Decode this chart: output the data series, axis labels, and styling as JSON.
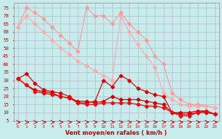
{
  "x": [
    0,
    1,
    2,
    3,
    4,
    5,
    6,
    7,
    8,
    9,
    10,
    11,
    12,
    13,
    14,
    15,
    16,
    17,
    18,
    19,
    20,
    21,
    22,
    23
  ],
  "line1": [
    63,
    75,
    72,
    68,
    63,
    58,
    53,
    48,
    75,
    70,
    70,
    65,
    72,
    65,
    60,
    55,
    45,
    40,
    22,
    18,
    15,
    15,
    14,
    13
  ],
  "line2": [
    63,
    70,
    65,
    60,
    55,
    50,
    46,
    42,
    39,
    36,
    33,
    30,
    70,
    60,
    52,
    45,
    38,
    22,
    18,
    15,
    14,
    14,
    14,
    13
  ],
  "line3": [
    31,
    34,
    28,
    24,
    23,
    22,
    20,
    16,
    16,
    17,
    30,
    26,
    33,
    30,
    25,
    23,
    21,
    20,
    10,
    10,
    10,
    11,
    11,
    9
  ],
  "line4": [
    31,
    27,
    24,
    23,
    22,
    20,
    19,
    17,
    17,
    16,
    17,
    20,
    18,
    18,
    18,
    17,
    16,
    15,
    10,
    9,
    9,
    10,
    10,
    9
  ],
  "line5": [
    31,
    27,
    23,
    22,
    21,
    20,
    19,
    16,
    15,
    15,
    16,
    16,
    16,
    16,
    15,
    14,
    14,
    13,
    10,
    8,
    8,
    10,
    11,
    9
  ],
  "xlabel": "Vent moyen/en rafales ( km/h )",
  "ylabel_ticks": [
    5,
    10,
    15,
    20,
    25,
    30,
    35,
    40,
    45,
    50,
    55,
    60,
    65,
    70,
    75
  ],
  "bg_color": "#c8ecec",
  "grid_color": "#b0b8cc",
  "line1_color": "#ff9999",
  "line2_color": "#ffaaaa",
  "line3_color": "#dd0000",
  "line4_color": "#cc0000",
  "line5_color": "#ff0000",
  "arrow_color": "#cc0000",
  "xlabel_color": "#cc0000",
  "tick_color": "#cc0000"
}
